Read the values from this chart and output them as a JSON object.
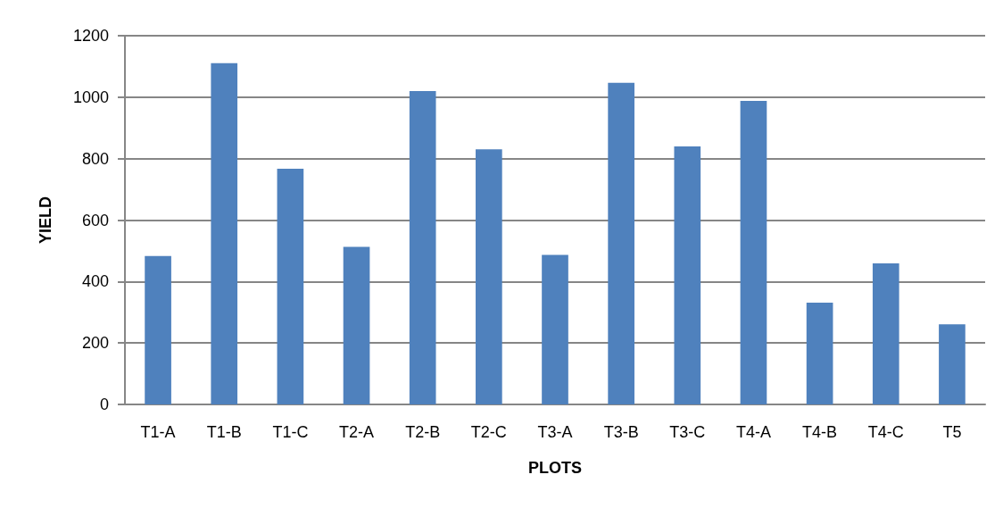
{
  "chart_data": {
    "type": "bar",
    "xlabel": "PLOTS",
    "ylabel": "YIELD",
    "categories": [
      "T1-A",
      "T1-B",
      "T1-C",
      "T2-A",
      "T2-B",
      "T2-C",
      "T3-A",
      "T3-B",
      "T3-C",
      "T4-A",
      "T4-B",
      "T4-C",
      "T5"
    ],
    "values": [
      483,
      1111,
      767,
      513,
      1020,
      830,
      487,
      1047,
      840,
      988,
      331,
      459,
      261
    ],
    "color": "#4f81bd",
    "ylim": [
      0,
      1200
    ],
    "yticks": [
      0,
      200,
      400,
      600,
      800,
      1000,
      1200
    ],
    "grid": "y"
  }
}
